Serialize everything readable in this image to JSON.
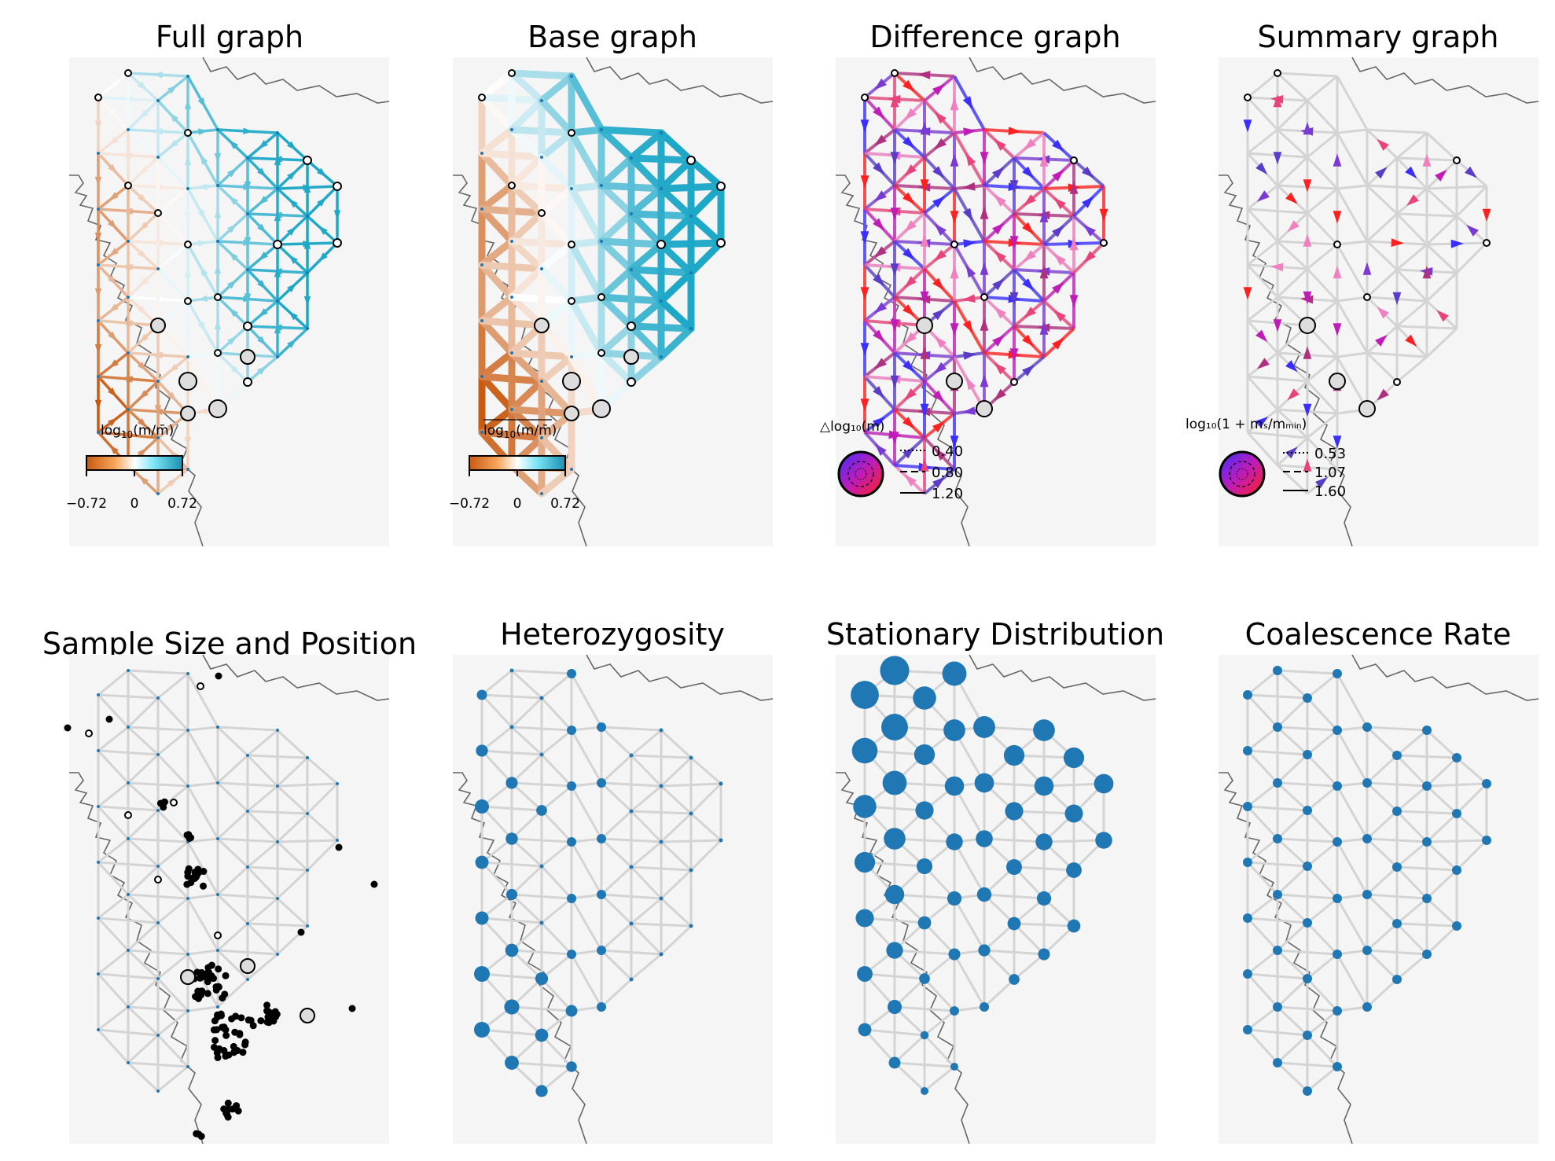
{
  "figure": {
    "panels": [
      {
        "key": "full",
        "title": "Full graph"
      },
      {
        "key": "base",
        "title": "Base graph"
      },
      {
        "key": "diff",
        "title": "Difference graph"
      },
      {
        "key": "summary",
        "title": "Summary graph"
      },
      {
        "key": "sample",
        "title": "Sample Size and Position"
      },
      {
        "key": "het",
        "title": "Heterozygosity"
      },
      {
        "key": "stat",
        "title": "Stationary Distribution"
      },
      {
        "key": "coal",
        "title": "Coalescence Rate"
      }
    ],
    "legends": {
      "full": {
        "label_main": "log",
        "label_sub": "10",
        "label_frac": "(m/m̄)",
        "ticks": [
          "−0.72",
          "0",
          "0.72"
        ]
      },
      "base": {
        "label_main": "log",
        "label_sub": "10",
        "label_frac": "(m/m̄)",
        "ticks": [
          "−0.72",
          "0",
          "0.72"
        ]
      },
      "diff": {
        "label": "△log₁₀(m)",
        "entries": [
          "0.40",
          "0.80",
          "1.20"
        ]
      },
      "summary": {
        "label": "log₁₀(1 + mₛ/mₘᵢₙ)",
        "entries": [
          "0.53",
          "1.07",
          "1.60"
        ]
      }
    },
    "colors": {
      "orange_strong": "#c85a11",
      "orange_light": "#f7a75e",
      "cyan_strong": "#1ea8c8",
      "cyan_light": "#7ee6f8",
      "grid": "#d4d4d4",
      "node_blue": "#1f77b4",
      "map_bg": "#f5f5f5",
      "coast": "#666666"
    }
  },
  "chart_data": [
    {
      "type": "network",
      "title": "Full graph",
      "colorbar": {
        "label": "log10(m/m̄)",
        "range": [
          -0.72,
          0.72
        ],
        "ticks": [
          -0.72,
          0,
          0.72
        ]
      }
    },
    {
      "type": "network",
      "title": "Base graph",
      "colorbar": {
        "label": "log10(m/m̄)",
        "range": [
          -0.72,
          0.72
        ],
        "ticks": [
          -0.72,
          0,
          0.72
        ]
      }
    },
    {
      "type": "network",
      "title": "Difference graph",
      "legend": {
        "label": "△log10(m)",
        "line_styles": {
          "dotted": 0.4,
          "dashed": 0.8,
          "solid": 1.2
        }
      }
    },
    {
      "type": "network",
      "title": "Summary graph",
      "legend": {
        "label": "log10(1 + ms/mmin)",
        "line_styles": {
          "dotted": 0.53,
          "dashed": 1.07,
          "solid": 1.6
        }
      }
    },
    {
      "type": "scatter",
      "title": "Sample Size and Position"
    },
    {
      "type": "scatter",
      "title": "Heterozygosity"
    },
    {
      "type": "scatter",
      "title": "Stationary Distribution"
    },
    {
      "type": "scatter",
      "title": "Coalescence Rate"
    }
  ]
}
